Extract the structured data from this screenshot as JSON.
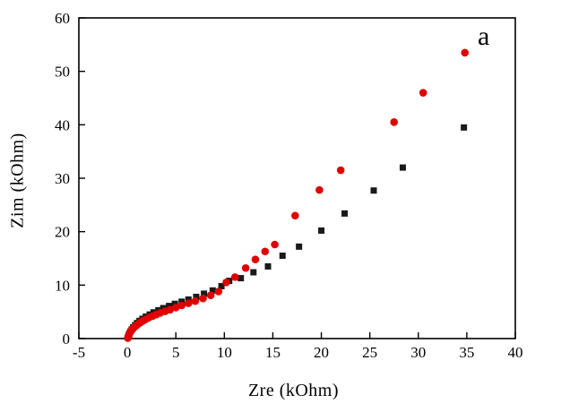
{
  "chart_data": {
    "type": "scatter",
    "title": "",
    "xlabel": "Zre (kOhm)",
    "ylabel": "Zim (kOhm)",
    "annotation": "a",
    "xlim": [
      -5,
      40
    ],
    "ylim": [
      0,
      60
    ],
    "xticks": [
      -5,
      0,
      5,
      10,
      15,
      20,
      25,
      30,
      35,
      40
    ],
    "yticks": [
      0,
      10,
      20,
      30,
      40,
      50,
      60
    ],
    "grid": false,
    "legend": "none",
    "background_color": "#ffffff",
    "frame_color": "#000000",
    "series": [
      {
        "name": "black-squares",
        "marker": "square",
        "color": "#1a1a1a",
        "x": [
          0.05,
          0.12,
          0.2,
          0.3,
          0.45,
          0.6,
          0.8,
          1.0,
          1.25,
          1.55,
          1.9,
          2.3,
          2.7,
          3.2,
          3.7,
          4.3,
          4.9,
          5.6,
          6.3,
          7.1,
          7.9,
          8.8,
          9.7,
          10.5,
          11.7,
          13.0,
          14.5,
          16.0,
          17.7,
          20.0,
          22.4,
          25.4,
          28.4,
          34.7
        ],
        "y": [
          0.2,
          0.5,
          0.9,
          1.3,
          1.7,
          2.1,
          2.5,
          2.9,
          3.3,
          3.7,
          4.1,
          4.5,
          4.9,
          5.3,
          5.7,
          6.1,
          6.5,
          6.9,
          7.3,
          7.8,
          8.4,
          9.0,
          9.8,
          10.8,
          11.3,
          12.4,
          13.5,
          15.5,
          17.2,
          20.2,
          23.4,
          27.7,
          32.0,
          39.5
        ]
      },
      {
        "name": "red-circles",
        "marker": "circle",
        "color": "#e00000",
        "x": [
          0.05,
          0.1,
          0.15,
          0.2,
          0.3,
          0.4,
          0.55,
          0.7,
          0.9,
          1.1,
          1.35,
          1.6,
          1.9,
          2.2,
          2.6,
          3.0,
          3.4,
          3.9,
          4.4,
          5.0,
          5.6,
          6.3,
          7.0,
          7.8,
          8.6,
          9.4,
          10.2,
          11.1,
          12.2,
          13.2,
          14.2,
          15.2,
          17.3,
          19.8,
          22.0,
          27.5,
          30.5,
          34.8
        ],
        "y": [
          0.1,
          0.3,
          0.6,
          0.9,
          1.2,
          1.5,
          1.8,
          2.1,
          2.4,
          2.7,
          3.0,
          3.3,
          3.6,
          3.9,
          4.2,
          4.5,
          4.8,
          5.1,
          5.4,
          5.8,
          6.2,
          6.6,
          7.0,
          7.5,
          8.1,
          8.8,
          10.5,
          11.5,
          13.2,
          14.8,
          16.3,
          17.6,
          23.0,
          27.8,
          31.5,
          40.5,
          46.0,
          53.5
        ]
      }
    ]
  }
}
